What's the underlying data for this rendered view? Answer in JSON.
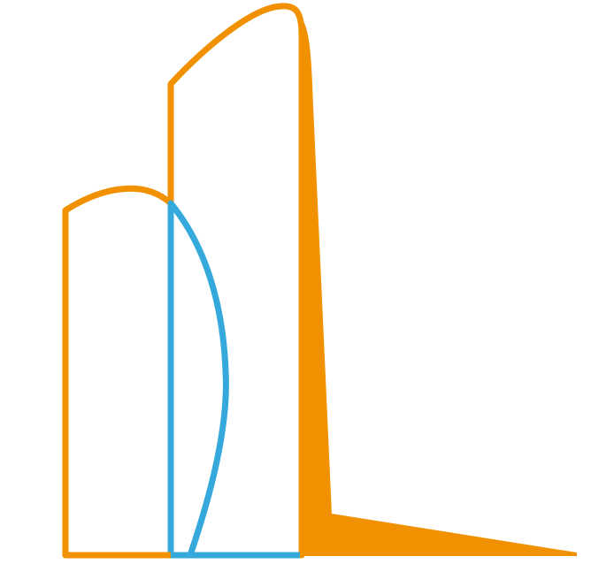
{
  "logo": {
    "colors": {
      "orange": "#F29100",
      "blue": "#35A9DB",
      "background": "#FFFFFF"
    },
    "elements": [
      "short-tower-outline",
      "tall-tower-outline",
      "tall-tower-shadow-wedge",
      "blue-sail-shape",
      "baseline"
    ]
  }
}
